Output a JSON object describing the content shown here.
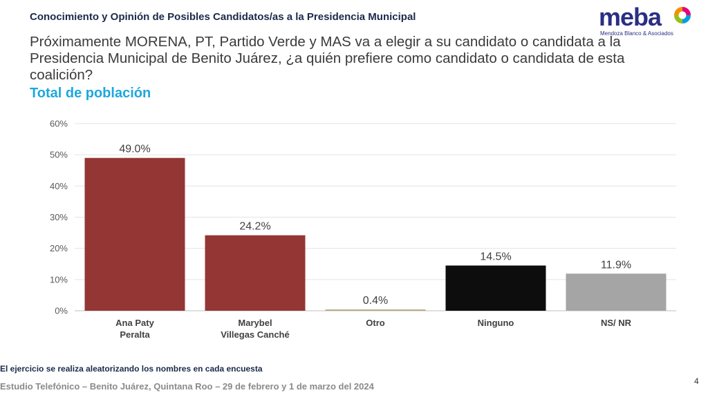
{
  "header": {
    "title": "Conocimiento y Opinión de Posibles Candidatos/as a la Presidencia Municipal"
  },
  "logo": {
    "word": "meba",
    "tagline": "Mendoza Blanco & Asociados",
    "colors": [
      "#f39200",
      "#e6007e",
      "#009fe3",
      "#95c11f"
    ]
  },
  "question": "Próximamente MORENA, PT, Partido Verde y MAS va a elegir a su candidato o candidata a la Presidencia Municipal de Benito Juárez, ¿a quién prefiere como candidato o candidata de esta coalición?",
  "subtitle": "Total de población",
  "chart_data": {
    "type": "bar",
    "categories": [
      [
        "Ana Paty",
        "Peralta"
      ],
      [
        "Marybel",
        "Villegas Canché"
      ],
      [
        "Otro"
      ],
      [
        "Ninguno"
      ],
      [
        "NS/ NR"
      ]
    ],
    "values": [
      49.0,
      24.2,
      0.4,
      14.5,
      11.9
    ],
    "value_labels": [
      "49.0%",
      "24.2%",
      "0.4%",
      "14.5%",
      "11.9%"
    ],
    "bar_colors": [
      "#943634",
      "#943634",
      "#b5a57a",
      "#0d0d0d",
      "#a5a5a5"
    ],
    "ylim": [
      0,
      60
    ],
    "yticks": [
      0,
      10,
      20,
      30,
      40,
      50,
      60
    ],
    "ytick_labels": [
      "0%",
      "10%",
      "20%",
      "30%",
      "40%",
      "50%",
      "60%"
    ],
    "grid": true,
    "title": "",
    "xlabel": "",
    "ylabel": ""
  },
  "note": "El ejercicio se realiza aleatorizando los nombres en cada encuesta",
  "footer": "Estudio Telefónico – Benito Juárez, Quintana Roo – 29 de febrero y 1 de marzo del 2024",
  "page_number": "4"
}
